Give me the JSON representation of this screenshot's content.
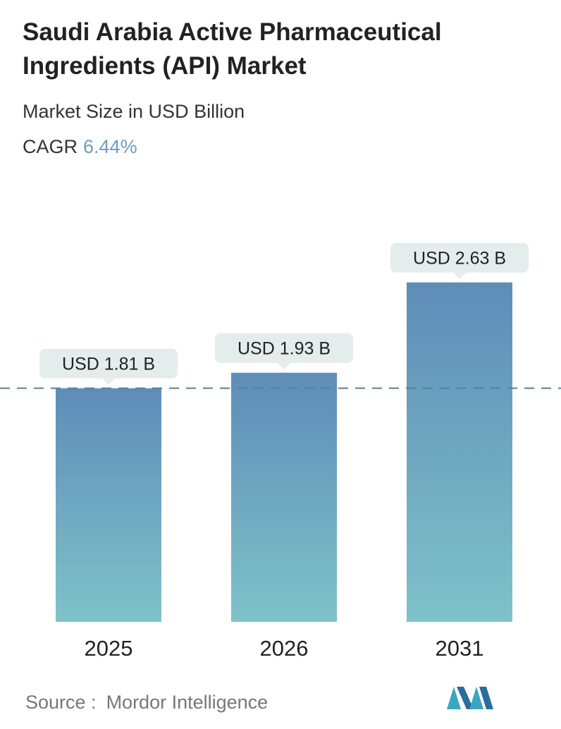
{
  "header": {
    "title": "Saudi Arabia Active Pharmaceutical Ingredients (API) Market",
    "subtitle": "Market Size in USD Billion",
    "cagr_label": "CAGR",
    "cagr_value": "6.44%"
  },
  "footer": {
    "source_label": "Source :",
    "source_value": "Mordor Intelligence",
    "logo_icon": "mordor-intelligence-logo"
  },
  "colors": {
    "bar_top": "#5e8db8",
    "bar_bottom": "#7fc2c9",
    "label_bg": "#e5ecec",
    "dashed_line": "#5a7f9c",
    "cagr_accent": "#6f9bc0"
  },
  "chart_data": {
    "type": "bar",
    "categories": [
      "2025",
      "2026",
      "2031"
    ],
    "values": [
      1.81,
      1.93,
      2.63
    ],
    "data_labels": [
      "USD 1.81 B",
      "USD 1.93 B",
      "USD 2.63 B"
    ],
    "title": "Saudi Arabia Active Pharmaceutical Ingredients (API) Market",
    "subtitle": "Market Size in USD Billion",
    "xlabel": "",
    "ylabel": "",
    "ylim": [
      0,
      2.95
    ],
    "grid": false,
    "legend": "none",
    "reference_line": {
      "style": "dashed",
      "value": 1.81
    }
  }
}
